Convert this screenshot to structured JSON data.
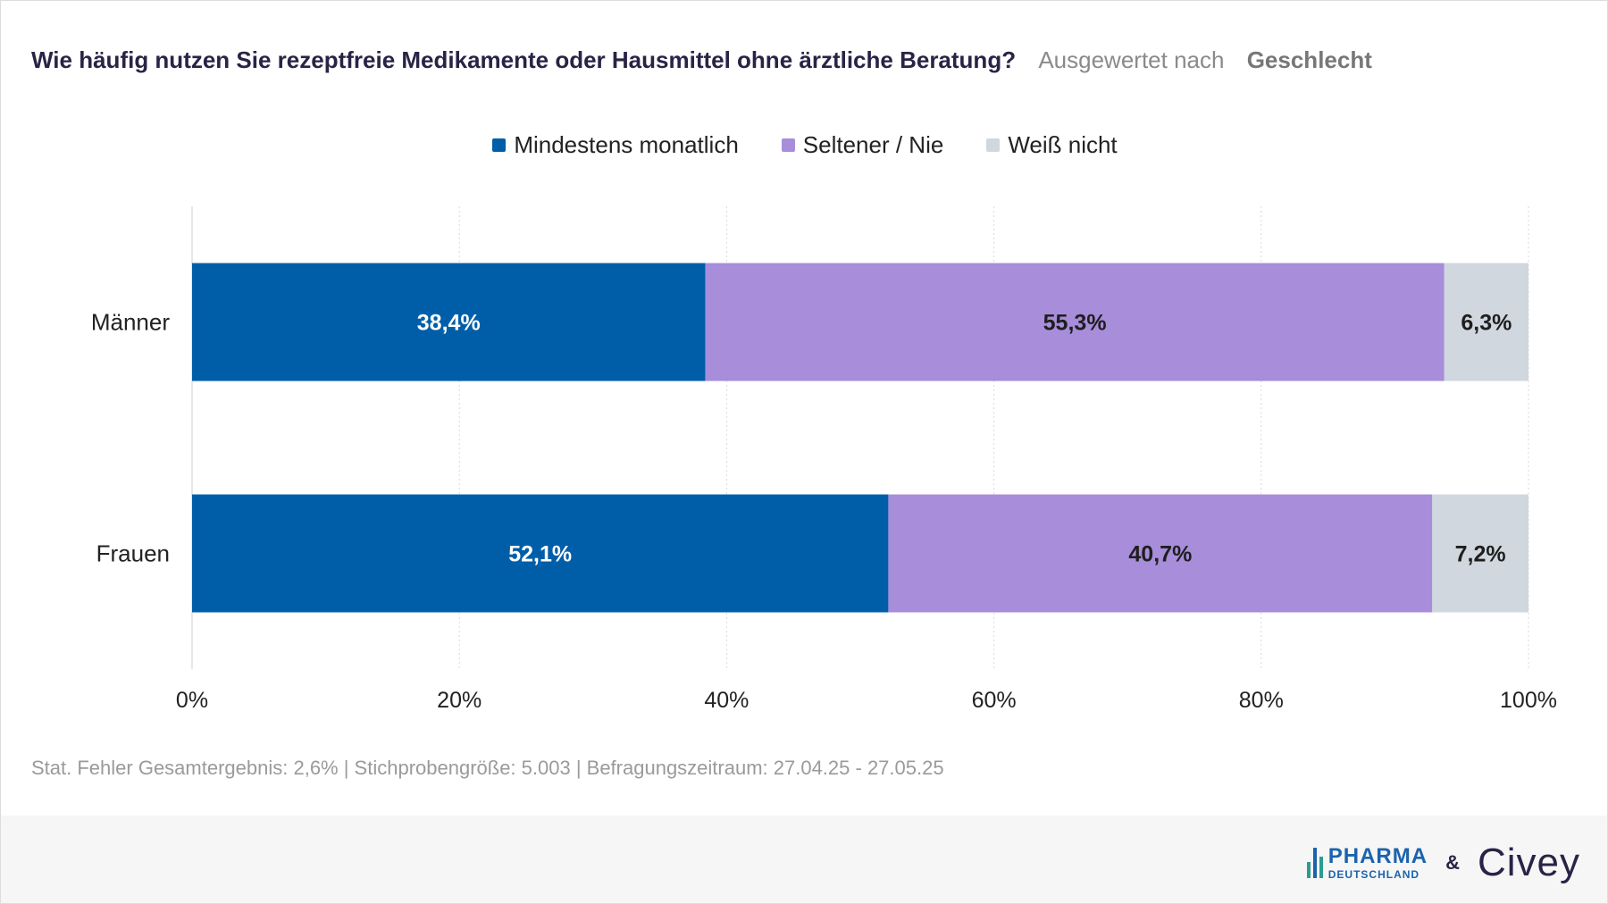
{
  "header": {
    "title": "Wie häufig nutzen Sie rezeptfreie Medikamente oder Hausmittel ohne ärztliche Beratung?",
    "subtitle_prefix": "Ausgewertet nach",
    "subtitle_group": "Geschlecht"
  },
  "chart_data": {
    "type": "bar",
    "orientation": "horizontal",
    "stacked": true,
    "categories": [
      "Männer",
      "Frauen"
    ],
    "series": [
      {
        "name": "Mindestens monatlich",
        "values": [
          38.4,
          52.1
        ],
        "labels": [
          "38,4%",
          "52,1%"
        ],
        "color": "#005ea8",
        "label_color": "#ffffff"
      },
      {
        "name": "Seltener / Nie",
        "values": [
          55.3,
          40.7
        ],
        "labels": [
          "55,3%",
          "40,7%"
        ],
        "color": "#a78dda",
        "label_color": "#1e1e1e"
      },
      {
        "name": "Weiß nicht",
        "values": [
          6.3,
          7.2
        ],
        "labels": [
          "6,3%",
          "7,2%"
        ],
        "color": "#d0d7de",
        "label_color": "#1e1e1e"
      }
    ],
    "xlim": [
      0,
      100
    ],
    "xticks": [
      0,
      20,
      40,
      60,
      80,
      100
    ],
    "xtick_labels": [
      "0%",
      "20%",
      "40%",
      "60%",
      "80%",
      "100%"
    ],
    "grid": true,
    "legend_position": "top-center"
  },
  "footer": {
    "note": "Stat. Fehler Gesamtergebnis: 2,6% | Stichprobengröße: 5.003 | Befragungszeitraum: 27.04.25 - 27.05.25"
  },
  "branding": {
    "pharma_top": "PHARMA",
    "pharma_bottom": "DEUTSCHLAND",
    "ampersand": "&",
    "civey": "Civey",
    "pharma_mark_colors": [
      "#2a9d8f",
      "#1b63ad",
      "#2a9d8f"
    ]
  }
}
